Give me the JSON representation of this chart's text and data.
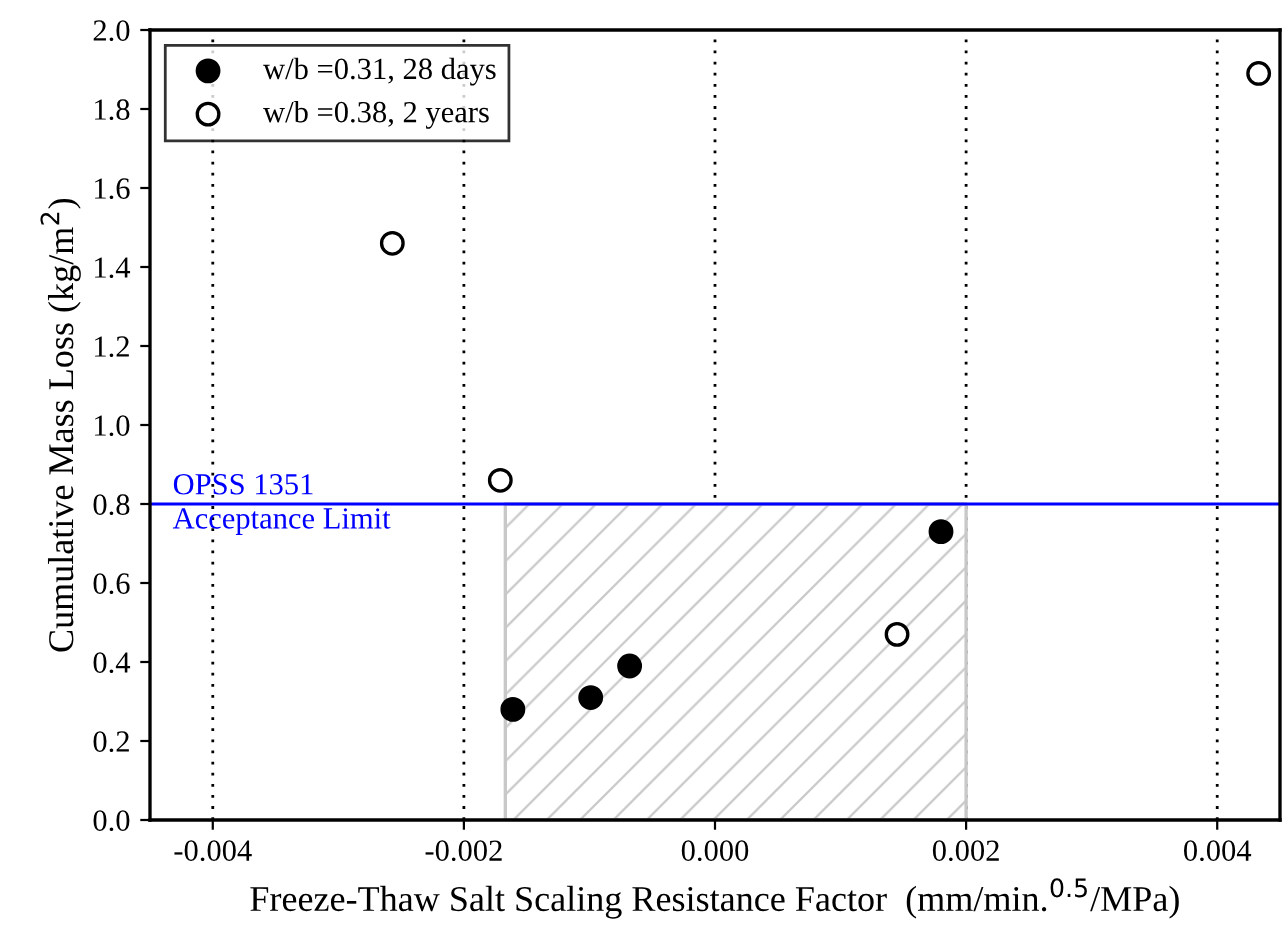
{
  "chart_data": {
    "type": "scatter",
    "xlabel": "Freeze-Thaw Salt Scaling Resistance Factor  (mm/min.$^{0.5}$/MPa)",
    "ylabel": "Cumulative Mass Loss (kg/m$^{2}$)",
    "series": [
      {
        "name": "w/b =0.31, 28 days",
        "color": "#000000",
        "x": [
          -0.00161,
          -0.00099,
          -0.00068,
          0.0018
        ],
        "values": [
          0.28,
          0.31,
          0.39,
          0.73
        ]
      },
      {
        "name": "w/b =0.38, 2 years",
        "color": "#ffffff",
        "x": [
          -0.00257,
          -0.00171,
          0.00145,
          0.00433
        ],
        "values": [
          1.46,
          0.86,
          0.47,
          1.89
        ]
      }
    ],
    "xlim": [
      -0.0045,
      0.0045
    ],
    "xticks": [
      {
        "value": -0.004,
        "label": "-0.004"
      },
      {
        "value": -0.002,
        "label": "-0.002"
      },
      {
        "value": 0,
        "label": "0.000"
      },
      {
        "value": 0.002,
        "label": "0.002"
      },
      {
        "value": 0.004,
        "label": "0.004"
      }
    ],
    "ylim": [
      0,
      2.0
    ],
    "yticks": [
      {
        "value": 0,
        "label": "0.0"
      },
      {
        "value": 0.2,
        "label": "0.2"
      },
      {
        "value": 0.4,
        "label": "0.4"
      },
      {
        "value": 0.6,
        "label": "0.6"
      },
      {
        "value": 0.8,
        "label": "0.8"
      },
      {
        "value": 1.0,
        "label": "1.0"
      },
      {
        "value": 1.2,
        "label": "1.2"
      },
      {
        "value": 1.4,
        "label": "1.4"
      },
      {
        "value": 1.6,
        "label": "1.6"
      },
      {
        "value": 1.8,
        "label": "1.8"
      },
      {
        "value": 2.0,
        "label": "2.0"
      }
    ],
    "ref_lines": [
      {
        "axis": "y",
        "value": 0.8,
        "label": "OPSS 1351\nAcceptance Limit",
        "color": "#0000ff"
      }
    ],
    "bands": [
      {
        "axis": "x",
        "from": -0.00167,
        "to": 0.002,
        "color": "#c8c8c8"
      }
    ],
    "grid": "x",
    "legend": "top left",
    "marker": "circle"
  }
}
